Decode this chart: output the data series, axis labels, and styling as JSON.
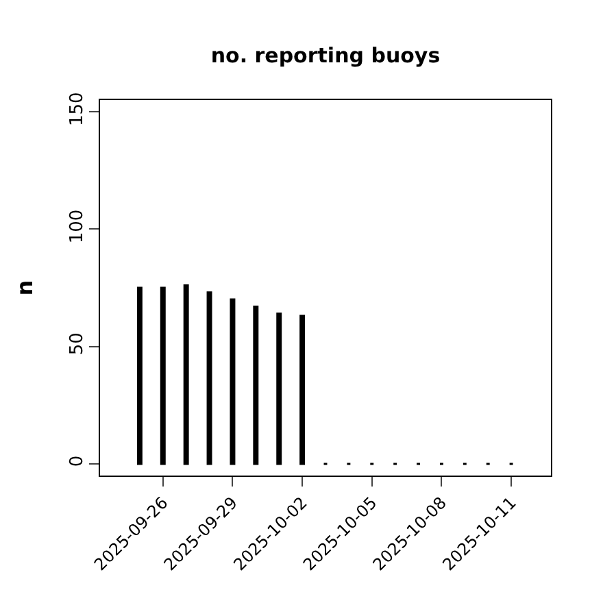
{
  "chart_data": {
    "type": "bar",
    "title": "no. reporting buoys",
    "ylabel": "n",
    "x": [
      "2025-09-25",
      "2025-09-26",
      "2025-09-27",
      "2025-09-28",
      "2025-09-29",
      "2025-09-30",
      "2025-10-01",
      "2025-10-02",
      "2025-10-03",
      "2025-10-04",
      "2025-10-05",
      "2025-10-06",
      "2025-10-07",
      "2025-10-08",
      "2025-10-09",
      "2025-10-10",
      "2025-10-11"
    ],
    "values": [
      75,
      75,
      76,
      73,
      70,
      67,
      64,
      63,
      0,
      0,
      0,
      0,
      0,
      0,
      0,
      0,
      0
    ],
    "color": "#000000",
    "xlim": [
      "2025-09-23T07:00",
      "2025-10-12T17:00"
    ],
    "xticks": [
      "2025-09-26",
      "2025-09-29",
      "2025-10-02",
      "2025-10-05",
      "2025-10-08",
      "2025-10-11"
    ],
    "ylim": [
      -5,
      155
    ],
    "yticks": [
      0,
      50,
      100,
      150
    ]
  }
}
